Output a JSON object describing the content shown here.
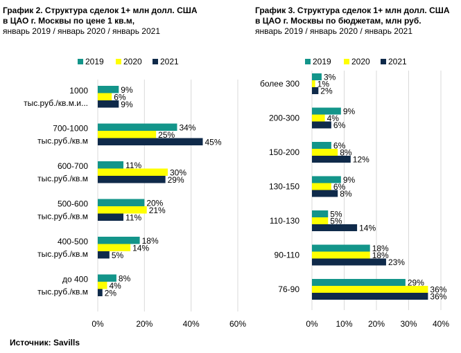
{
  "chart_data": [
    {
      "type": "bar",
      "orientation": "horizontal",
      "title_line1": "График 2. Структура сделок 1+ млн долл. США",
      "title_line2": "в ЦАО г. Москвы по цене 1 кв.м,",
      "subtitle": "январь 2019 / январь 2020 / январь 2021",
      "categories": [
        [
          "1000",
          "тыс.руб./кв.м.и..."
        ],
        [
          "700-1000",
          "тыс.руб./кв.м"
        ],
        [
          "600-700",
          "тыс.руб./кв.м"
        ],
        [
          "500-600",
          "тыс.руб./кв.м"
        ],
        [
          "400-500",
          "тыс.руб./кв.м"
        ],
        [
          "до 400",
          "тыс.руб./кв.м"
        ]
      ],
      "series": [
        {
          "name": "2019",
          "color": "#13958a",
          "values": [
            9,
            34,
            11,
            20,
            18,
            8
          ],
          "labels": [
            "9%",
            "34%",
            "11%",
            "20%",
            "18%",
            "8%"
          ]
        },
        {
          "name": "2020",
          "color": "#ffff00",
          "values": [
            6,
            25,
            30,
            21,
            14,
            4
          ],
          "labels": [
            "6%",
            "25%",
            "30%",
            "21%",
            "14%",
            "4%"
          ]
        },
        {
          "name": "2021",
          "color": "#0f2a4a",
          "values": [
            9,
            45,
            29,
            11,
            5,
            2
          ],
          "labels": [
            "9%",
            "45%",
            "29%",
            "11%",
            "5%",
            "2%"
          ]
        }
      ],
      "xlim": [
        0,
        60
      ],
      "xticks": [
        "0%",
        "20%",
        "40%",
        "60%"
      ],
      "grid": true,
      "legend": "top"
    },
    {
      "type": "bar",
      "orientation": "horizontal",
      "title_line1": "График 3. Структура сделок 1+ млн долл. США",
      "title_line2": "в ЦАО г. Москвы по бюджетам, млн руб.",
      "subtitle": "январь 2019 / январь 2020 / январь 2021",
      "categories": [
        [
          "более 300"
        ],
        [
          "200-300"
        ],
        [
          "150-200"
        ],
        [
          "130-150"
        ],
        [
          "110-130"
        ],
        [
          "90-110"
        ],
        [
          "76-90"
        ]
      ],
      "series": [
        {
          "name": "2019",
          "color": "#13958a",
          "values": [
            3,
            9,
            6,
            9,
            5,
            18,
            29
          ],
          "labels": [
            "3%",
            "9%",
            "6%",
            "9%",
            "5%",
            "18%",
            "29%"
          ]
        },
        {
          "name": "2020",
          "color": "#ffff00",
          "values": [
            1,
            4,
            8,
            6,
            5,
            18,
            36
          ],
          "labels": [
            "1%",
            "4%",
            "8%",
            "6%",
            "5%",
            "18%",
            "36%"
          ]
        },
        {
          "name": "2021",
          "color": "#0f2a4a",
          "values": [
            2,
            6,
            12,
            8,
            14,
            23,
            36
          ],
          "labels": [
            "2%",
            "6%",
            "12%",
            "8%",
            "14%",
            "23%",
            "36%"
          ]
        }
      ],
      "xlim": [
        0,
        40
      ],
      "xticks": [
        "0%",
        "10%",
        "20%",
        "30%",
        "40%"
      ],
      "grid": true,
      "legend": "top"
    }
  ],
  "source": "Источник: Savills"
}
